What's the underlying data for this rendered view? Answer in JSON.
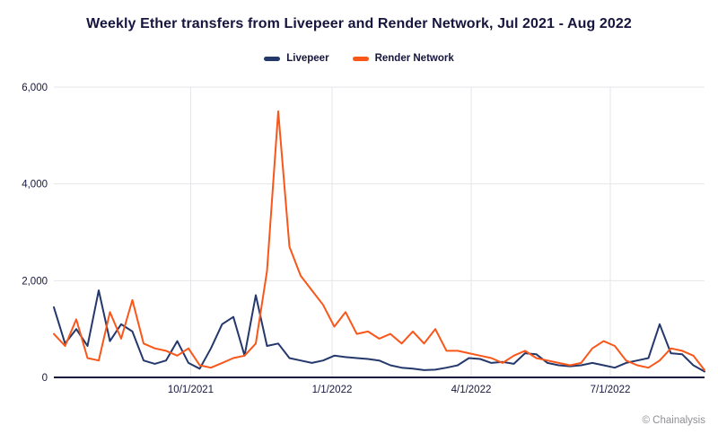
{
  "title": "Weekly Ether transfers from Livepeer and Render Network, Jul 2021 - Aug 2022",
  "attribution": "© Chainalysis",
  "chart_data": {
    "type": "line",
    "title": "Weekly Ether transfers from Livepeer and Render Network, Jul 2021 - Aug 2022",
    "x_unit": "week",
    "x_note": "59 weekly points spanning Jul 2021 - Aug 2022",
    "ylim": [
      0,
      6000
    ],
    "grid": true,
    "legend_position": "top-center",
    "axis_color": "#15153d",
    "gridline_color": "#e6e6ea",
    "tick_label_color": "#17173e",
    "y_ticks": [
      {
        "value": 0,
        "label": "0"
      },
      {
        "value": 2000,
        "label": "2,000"
      },
      {
        "value": 4000,
        "label": "4,000"
      },
      {
        "value": 6000,
        "label": "6,000"
      }
    ],
    "x_ticks": [
      {
        "week_index": 12.2,
        "label": "10/1/2021"
      },
      {
        "week_index": 24.8,
        "label": "1/1/2022"
      },
      {
        "week_index": 37.2,
        "label": "4/1/2022"
      },
      {
        "week_index": 49.6,
        "label": "7/1/2022"
      }
    ],
    "series": [
      {
        "name": "Livepeer",
        "color": "#24386b",
        "values": [
          1450,
          700,
          1000,
          650,
          1800,
          750,
          1100,
          950,
          350,
          280,
          350,
          750,
          300,
          180,
          600,
          1100,
          1250,
          450,
          1700,
          650,
          700,
          400,
          350,
          300,
          350,
          450,
          420,
          400,
          380,
          350,
          250,
          200,
          180,
          150,
          160,
          200,
          250,
          400,
          380,
          300,
          320,
          280,
          500,
          480,
          300,
          250,
          230,
          250,
          300,
          250,
          200,
          300,
          350,
          400,
          1100,
          500,
          480,
          250,
          120
        ]
      },
      {
        "name": "Render Network",
        "color": "#f9571a",
        "values": [
          900,
          650,
          1200,
          400,
          350,
          1350,
          800,
          1600,
          700,
          600,
          550,
          450,
          600,
          250,
          200,
          300,
          400,
          450,
          700,
          2200,
          5500,
          2700,
          2100,
          1800,
          1500,
          1050,
          1350,
          900,
          950,
          800,
          900,
          700,
          950,
          700,
          1000,
          550,
          550,
          500,
          450,
          400,
          300,
          450,
          550,
          400,
          350,
          300,
          250,
          300,
          600,
          750,
          650,
          350,
          250,
          200,
          350,
          600,
          550,
          450,
          150
        ]
      }
    ]
  }
}
